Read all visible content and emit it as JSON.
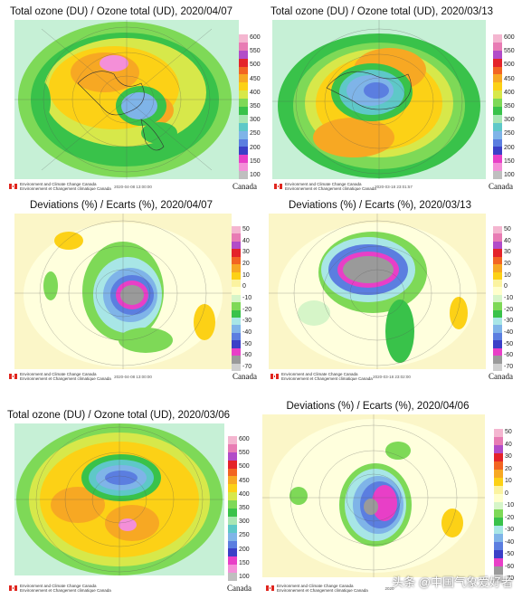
{
  "panels": [
    {
      "id": "p1",
      "title": "Total ozone (DU) / Ozone total (UD), 2020/04/07",
      "kind": "ozone",
      "timestamp": "2020-04-08 13:00:00"
    },
    {
      "id": "p2",
      "title": "Total ozone (DU) / Ozone total (UD), 2020/03/13",
      "kind": "ozone",
      "timestamp": "2020-03-18 23:01:57"
    },
    {
      "id": "p3",
      "title": "Deviations (%) / Ecarts (%), 2020/04/07",
      "kind": "dev",
      "timestamp": "2020-04-08 13:00:00"
    },
    {
      "id": "p4",
      "title": "Deviations (%) / Ecarts (%), 2020/03/13",
      "kind": "dev",
      "timestamp": "2020-03-18 23:02:00"
    },
    {
      "id": "p5",
      "title": "Total ozone (DU) / Ozone total (UD), 2020/03/06",
      "kind": "ozone",
      "timestamp": ""
    },
    {
      "id": "p6",
      "title": "Deviations (%) / Ecarts (%), 2020/04/06",
      "kind": "dev",
      "timestamp": "2020"
    }
  ],
  "ozone_scale": {
    "labels": [
      "600",
      "550",
      "500",
      "450",
      "400",
      "350",
      "300",
      "250",
      "200",
      "150",
      "100"
    ],
    "colors": [
      "#f4b6d0",
      "#e87cb4",
      "#b24cc8",
      "#e4232a",
      "#f26522",
      "#f7a823",
      "#fcd116",
      "#d7e84a",
      "#7ed957",
      "#39c24a",
      "#a8e6b3",
      "#5ec8c8",
      "#7fb4e8",
      "#5b7ee0",
      "#3b3fc7",
      "#e83fc7",
      "#f48fd8",
      "#bfbfbf"
    ]
  },
  "dev_scale": {
    "labels": [
      "50",
      "40",
      "30",
      "20",
      "10",
      "0",
      "-10",
      "-20",
      "-30",
      "-40",
      "-50",
      "-60",
      "-70"
    ],
    "colors": [
      "#f4b6d0",
      "#e87cb4",
      "#b24cc8",
      "#e4232a",
      "#f26522",
      "#f7a823",
      "#fcd116",
      "#fbf3a0",
      "#ffffcc",
      "#d6f5c8",
      "#7ed957",
      "#39c24a",
      "#a8e6e6",
      "#7fb4e8",
      "#5b7ee0",
      "#3b3fc7",
      "#e83fc7",
      "#9a9a9a",
      "#cfcfcf"
    ]
  },
  "footer": {
    "agency_en": "Environment and Climate Change Canada",
    "agency_fr": "Environnement et Changement climatique Canada",
    "wordmark": "Canada"
  },
  "watermark": "头条 @中国气象爱好者"
}
